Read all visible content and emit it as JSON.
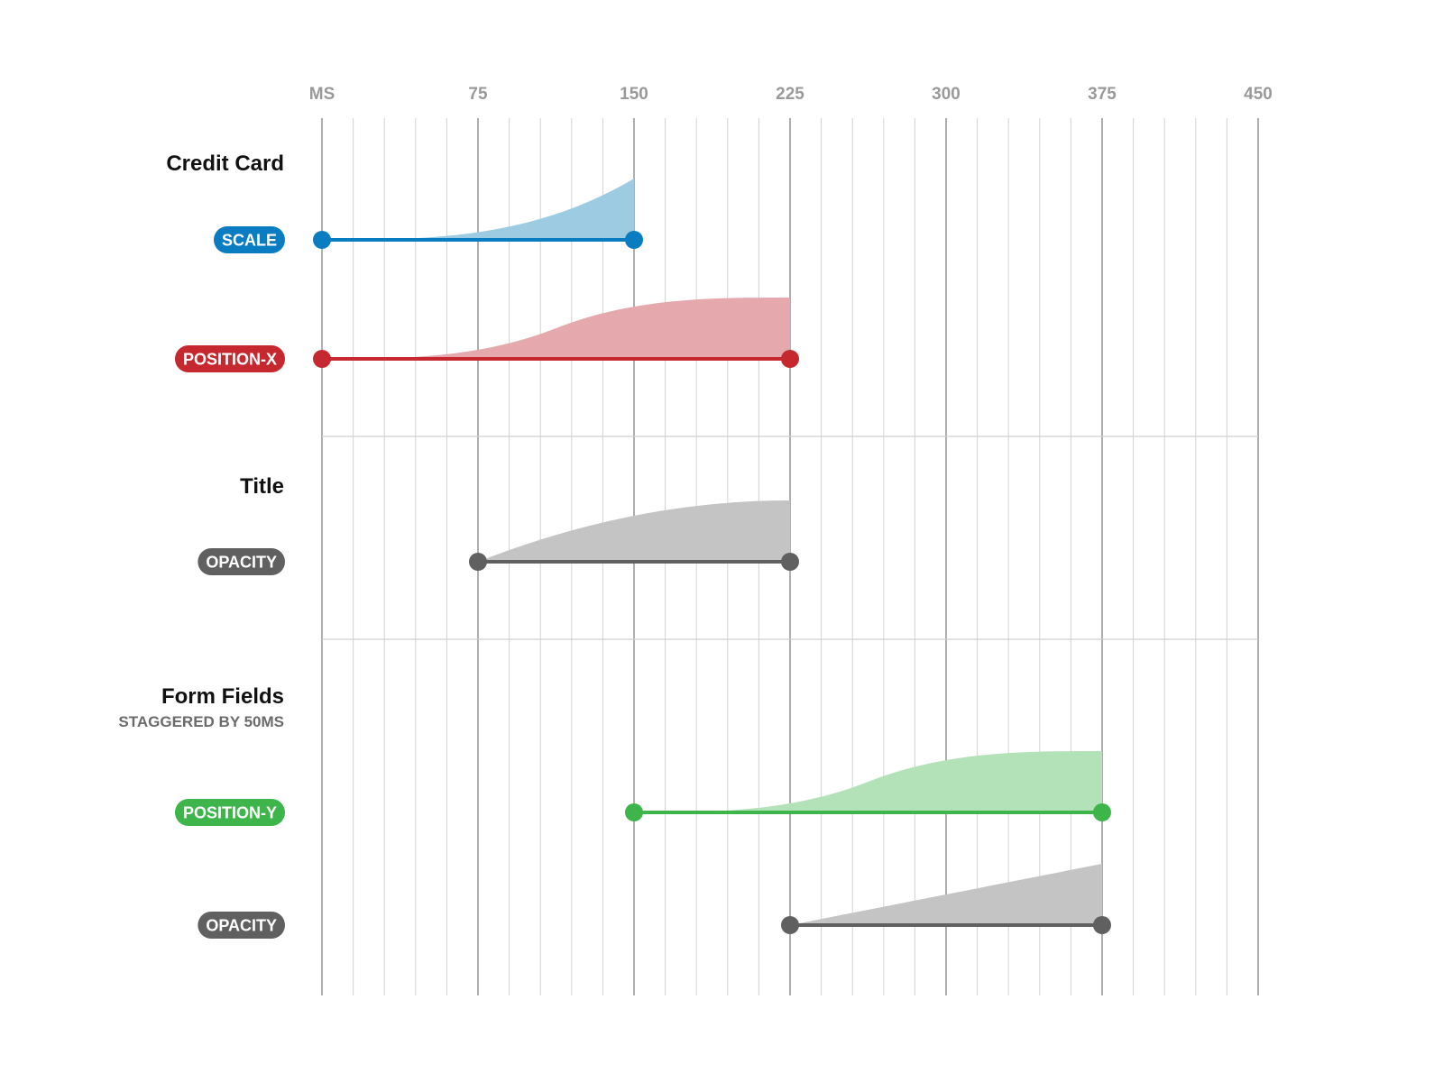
{
  "chart_data": {
    "type": "timeline",
    "axis": {
      "unit_label": "MS",
      "ticks": [
        "75",
        "150",
        "225",
        "300",
        "375",
        "450"
      ],
      "xlim": [
        0,
        450
      ],
      "minor_step": 15,
      "major_step": 75
    },
    "groups": [
      {
        "title": "Credit Card",
        "subtitle": "",
        "tracks": [
          {
            "label": "SCALE",
            "color": "#0a7cc1",
            "fill": "#9ccbe2",
            "start": 0,
            "end": 150,
            "easing": "ease-in"
          },
          {
            "label": "POSITION-X",
            "color": "#c5282f",
            "fill": "#e5a9ad",
            "start": 0,
            "end": 225,
            "easing": "ease-in-out"
          }
        ]
      },
      {
        "title": "Title",
        "subtitle": "",
        "tracks": [
          {
            "label": "OPACITY",
            "color": "#606060",
            "fill": "#c4c4c4",
            "start": 75,
            "end": 225,
            "easing": "ease-out"
          }
        ]
      },
      {
        "title": "Form Fields",
        "subtitle": "STAGGERED BY 50MS",
        "tracks": [
          {
            "label": "POSITION-Y",
            "color": "#3db54a",
            "fill": "#b3e2b8",
            "start": 150,
            "end": 375,
            "easing": "ease-in-out"
          },
          {
            "label": "OPACITY",
            "color": "#606060",
            "fill": "#c4c4c4",
            "start": 225,
            "end": 375,
            "easing": "linear"
          }
        ]
      }
    ]
  }
}
